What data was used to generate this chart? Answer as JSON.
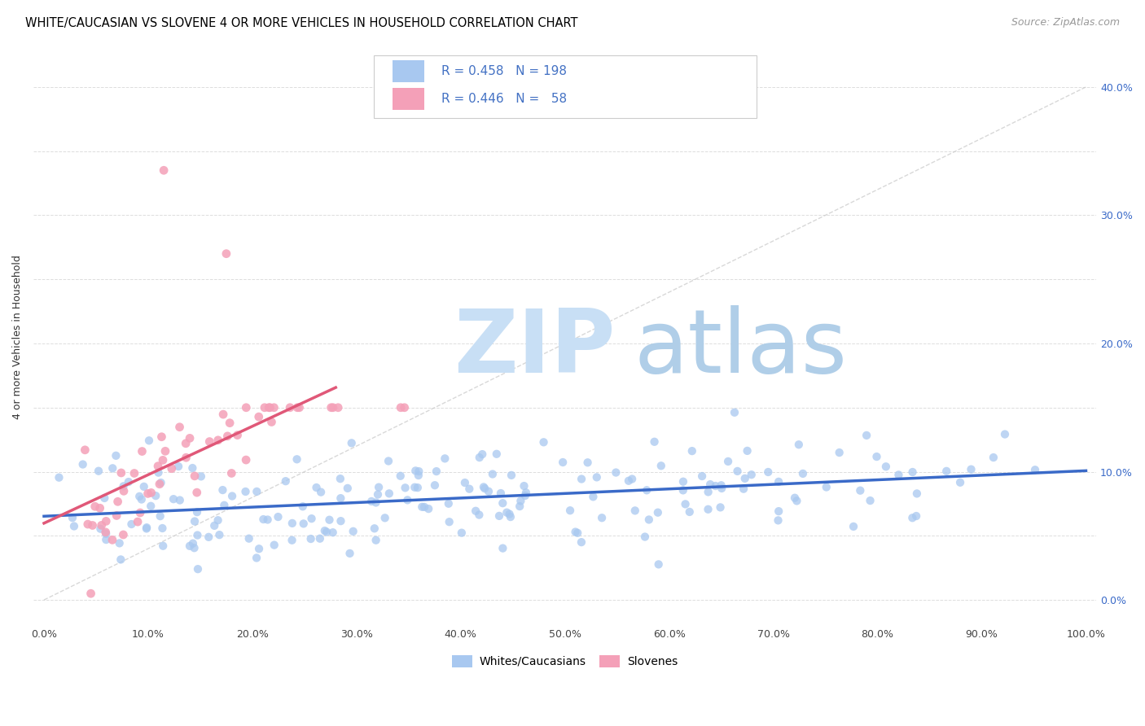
{
  "title": "WHITE/CAUCASIAN VS SLOVENE 4 OR MORE VEHICLES IN HOUSEHOLD CORRELATION CHART",
  "source": "Source: ZipAtlas.com",
  "ylabel": "4 or more Vehicles in Household",
  "xlim": [
    -0.01,
    1.01
  ],
  "ylim": [
    -0.02,
    0.43
  ],
  "x_ticks": [
    0.0,
    0.1,
    0.2,
    0.3,
    0.4,
    0.5,
    0.6,
    0.7,
    0.8,
    0.9,
    1.0
  ],
  "y_ticks_right": [
    0.0,
    0.1,
    0.2,
    0.3,
    0.4
  ],
  "y_ticks_grid": [
    0.0,
    0.05,
    0.1,
    0.15,
    0.2,
    0.25,
    0.3,
    0.35,
    0.4
  ],
  "blue_scatter_color": "#A8C8F0",
  "pink_scatter_color": "#F4A0B8",
  "blue_line_color": "#3A6AC8",
  "pink_line_color": "#E05878",
  "diag_line_color": "#C8C8C8",
  "legend_text_color": "#4472C4",
  "legend_blue_r": "0.458",
  "legend_blue_n": "198",
  "legend_pink_r": "0.446",
  "legend_pink_n": "58",
  "title_fontsize": 10.5,
  "source_fontsize": 9,
  "axis_label_fontsize": 9,
  "tick_fontsize": 9,
  "legend_fontsize": 11,
  "seed": 12345,
  "blue_n": 198,
  "pink_n": 58,
  "blue_r": 0.458,
  "pink_r": 0.446,
  "blue_intercept": 0.063,
  "blue_slope": 0.037,
  "pink_intercept": 0.043,
  "pink_slope": 0.52
}
